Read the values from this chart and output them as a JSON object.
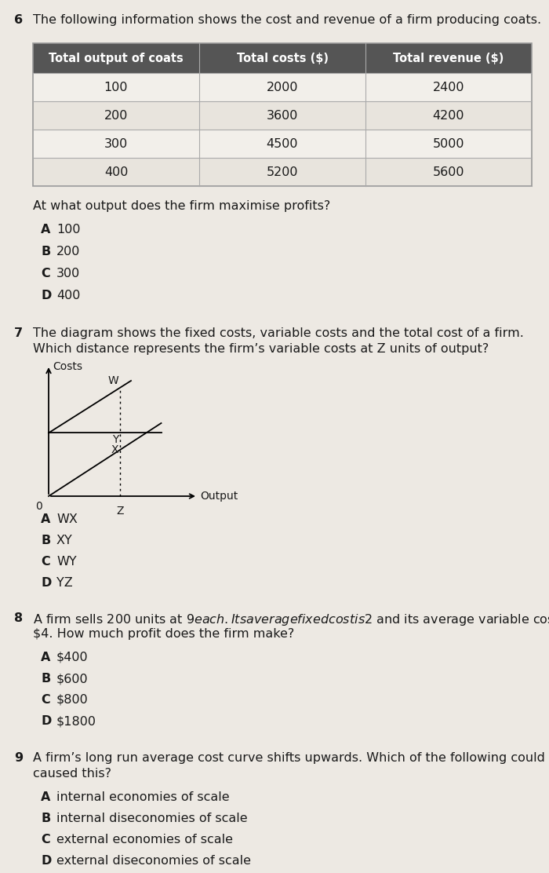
{
  "bg_color": "#ede9e3",
  "text_color": "#1a1a1a",
  "q6_intro": "The following information shows the cost and revenue of a firm producing coats.",
  "table_headers": [
    "Total output of coats",
    "Total costs ($)",
    "Total revenue ($)"
  ],
  "table_header_bg": "#555555",
  "table_rows": [
    [
      "100",
      "2000",
      "2400"
    ],
    [
      "200",
      "3600",
      "4200"
    ],
    [
      "300",
      "4500",
      "5000"
    ],
    [
      "400",
      "5200",
      "5600"
    ]
  ],
  "q6_question": "At what output does the firm maximise profits?",
  "q6_options": [
    [
      "A",
      "100"
    ],
    [
      "B",
      "200"
    ],
    [
      "C",
      "300"
    ],
    [
      "D",
      "400"
    ]
  ],
  "q7_intro_line1": "The diagram shows the fixed costs, variable costs and the total cost of a firm.",
  "q7_intro_line2": "Which distance represents the firm’s variable costs at Z units of output?",
  "q7_options": [
    [
      "A",
      "WX"
    ],
    [
      "B",
      "XY"
    ],
    [
      "C",
      "WY"
    ],
    [
      "D",
      "YZ"
    ]
  ],
  "q8_intro_line1": "A firm sells 200 units at $9 each. Its average fixed cost is $2 and its average variable cost is",
  "q8_intro_line2": "$4. How much profit does the firm make?",
  "q8_options": [
    [
      "A",
      "$400"
    ],
    [
      "B",
      "$600"
    ],
    [
      "C",
      "$800"
    ],
    [
      "D",
      "$1800"
    ]
  ],
  "q9_intro_line1": "A firm’s long run average cost curve shifts upwards. Which of the following could have",
  "q9_intro_line2": "caused this?",
  "q9_options": [
    [
      "A",
      "internal economies of scale"
    ],
    [
      "B",
      "internal diseconomies of scale"
    ],
    [
      "C",
      "external economies of scale"
    ],
    [
      "D",
      "external diseconomies of scale"
    ]
  ]
}
